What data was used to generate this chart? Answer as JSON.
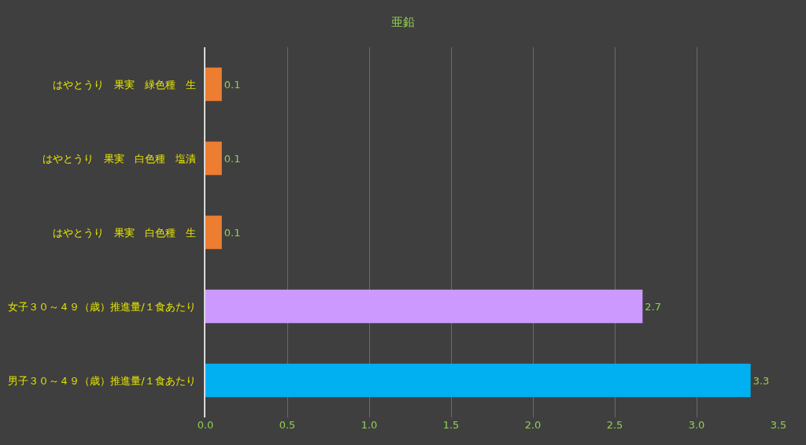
{
  "chart_data": {
    "type": "bar",
    "orientation": "horizontal",
    "title": "亜鉛",
    "categories": [
      "はやとうり　果実　緑色種　生",
      "はやとうり　果実　白色種　塩漬",
      "はやとうり　果実　白色種　生",
      "女子３０～４９（歳）推進量/１食あたり",
      "男子３０～４９（歳）推進量/１食あたり"
    ],
    "values": [
      0.1,
      0.1,
      0.1,
      2.67,
      3.33
    ],
    "value_labels": [
      "0.1",
      "0.1",
      "0.1",
      "2.7",
      "3.3"
    ],
    "colors": [
      "#ed7d31",
      "#ed7d31",
      "#ed7d31",
      "#cc99ff",
      "#00b0f0"
    ],
    "xlim": [
      0,
      3.5
    ],
    "xticks": [
      {
        "value": 0,
        "label": "0.0"
      },
      {
        "value": 0.5,
        "label": "0.5"
      },
      {
        "value": 1,
        "label": "1.0"
      },
      {
        "value": 1.5,
        "label": "1.5"
      },
      {
        "value": 2,
        "label": "2.0"
      },
      {
        "value": 2.5,
        "label": "2.5"
      },
      {
        "value": 3,
        "label": "3.0"
      },
      {
        "value": 3.5,
        "label": "3.5"
      }
    ],
    "grid": "x",
    "legend": false
  }
}
